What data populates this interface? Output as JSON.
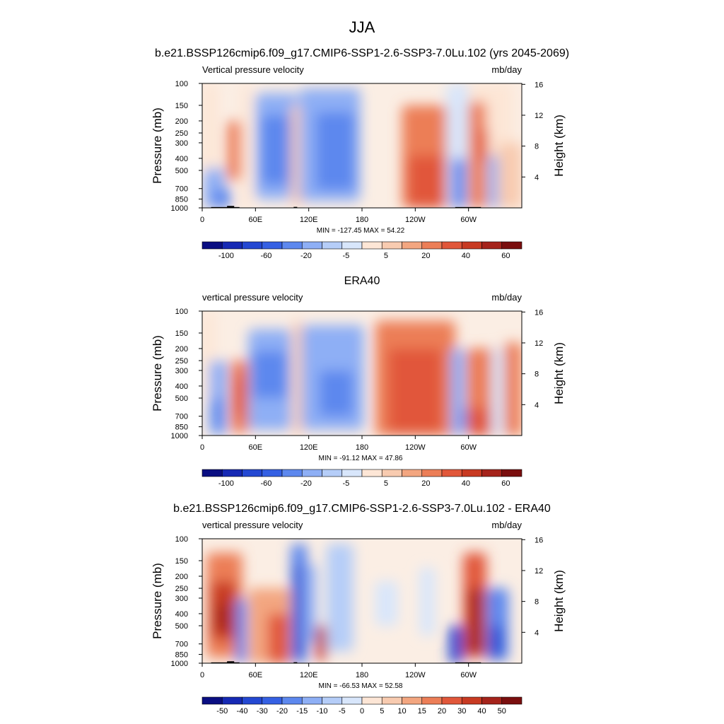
{
  "figure": {
    "title": "JJA"
  },
  "chart_data": [
    {
      "type": "heatmap",
      "title": "b.e21.BSSP126cmip6.f09_g17.CMIP6-SSP1-2.6-SSP3-7.0Lu.102 (yrs 2045-2069)",
      "left_label": "Vertical pressure velocity",
      "right_label": "mb/day",
      "ylabel": "Pressure (mb)",
      "ylabel_right": "Height (km)",
      "x_ticks": [
        "0",
        "60E",
        "120E",
        "180",
        "120W",
        "60W"
      ],
      "y_ticks": [
        "100",
        "150",
        "200",
        "250",
        "300",
        "400",
        "500",
        "700",
        "850",
        "1000"
      ],
      "y_right_ticks": [
        "16",
        "12",
        "8",
        "4"
      ],
      "stats": "MIN = -127.45  MAX =  54.22",
      "colorbar_labels": [
        "-100",
        "-60",
        "-20",
        "-5",
        "5",
        "20",
        "40",
        "60"
      ],
      "colorbar_colors": [
        "#0a0e82",
        "#1629b4",
        "#2448d2",
        "#3560e3",
        "#5d88ee",
        "#8eaff5",
        "#b5cdf8",
        "#d8e6fb",
        "#fde6d6",
        "#f8cbb0",
        "#f3a680",
        "#ec7e57",
        "#e1573a",
        "#c83a22",
        "#a5231b",
        "#7a0e0e"
      ],
      "features": [
        {
          "x": [
            0,
            18
          ],
          "p": [
            100,
            500
          ],
          "value": 4
        },
        {
          "x": [
            2,
            25
          ],
          "p": [
            480,
            1000
          ],
          "value": -20
        },
        {
          "x": [
            12,
            32
          ],
          "p": [
            700,
            1000
          ],
          "value": -60
        },
        {
          "x": [
            28,
            44
          ],
          "p": [
            200,
            600
          ],
          "value": 20
        },
        {
          "x": [
            44,
            55
          ],
          "p": [
            100,
            1000
          ],
          "value": 0
        },
        {
          "x": [
            60,
            108
          ],
          "p": [
            120,
            850
          ],
          "value": -20
        },
        {
          "x": [
            66,
            104
          ],
          "p": [
            180,
            650
          ],
          "value": -60
        },
        {
          "x": [
            100,
            114
          ],
          "p": [
            150,
            950
          ],
          "value": 5
        },
        {
          "x": [
            110,
            178
          ],
          "p": [
            110,
            880
          ],
          "value": -20
        },
        {
          "x": [
            128,
            172
          ],
          "p": [
            170,
            720
          ],
          "value": -60
        },
        {
          "x": [
            225,
            290
          ],
          "p": [
            150,
            1000
          ],
          "value": 20
        },
        {
          "x": [
            232,
            282
          ],
          "p": [
            380,
            1000
          ],
          "value": 40
        },
        {
          "x": [
            290,
            350
          ],
          "p": [
            100,
            900
          ],
          "value": 3
        },
        {
          "x": [
            275,
            300
          ],
          "p": [
            100,
            1000
          ],
          "value": -5
        },
        {
          "x": [
            281,
            297
          ],
          "p": [
            400,
            1000
          ],
          "value": -60
        },
        {
          "x": [
            300,
            320
          ],
          "p": [
            140,
            1000
          ],
          "value": 20
        },
        {
          "x": [
            312,
            322
          ],
          "p": [
            230,
            420
          ],
          "value": 40
        },
        {
          "x": [
            322,
            340
          ],
          "p": [
            380,
            1000
          ],
          "value": -20
        },
        {
          "x": [
            333,
            360
          ],
          "p": [
            300,
            1000
          ],
          "value": 5
        }
      ]
    },
    {
      "type": "heatmap",
      "title": "ERA40",
      "left_label": "vertical pressure velocity",
      "right_label": "mb/day",
      "ylabel": "Pressure (mb)",
      "ylabel_right": "Height (km)",
      "x_ticks": [
        "0",
        "60E",
        "120E",
        "180",
        "120W",
        "60W"
      ],
      "y_ticks": [
        "100",
        "150",
        "200",
        "250",
        "300",
        "400",
        "500",
        "700",
        "850",
        "1000"
      ],
      "y_right_ticks": [
        "16",
        "12",
        "8",
        "4"
      ],
      "stats": "MIN = -91.12  MAX =  47.86",
      "colorbar_labels": [
        "-100",
        "-60",
        "-20",
        "-5",
        "5",
        "20",
        "40",
        "60"
      ],
      "colorbar_colors": [
        "#0a0e82",
        "#1629b4",
        "#2448d2",
        "#3560e3",
        "#5d88ee",
        "#8eaff5",
        "#b5cdf8",
        "#d8e6fb",
        "#fde6d6",
        "#f8cbb0",
        "#f3a680",
        "#ec7e57",
        "#e1573a",
        "#c83a22",
        "#a5231b",
        "#7a0e0e"
      ],
      "features": [
        {
          "x": [
            0,
            15
          ],
          "p": [
            100,
            500
          ],
          "value": 4
        },
        {
          "x": [
            8,
            28
          ],
          "p": [
            250,
            1000
          ],
          "value": -20
        },
        {
          "x": [
            10,
            24
          ],
          "p": [
            500,
            900
          ],
          "value": -60
        },
        {
          "x": [
            32,
            52
          ],
          "p": [
            250,
            950
          ],
          "value": 20
        },
        {
          "x": [
            36,
            48
          ],
          "p": [
            330,
            700
          ],
          "value": 40
        },
        {
          "x": [
            52,
            100
          ],
          "p": [
            140,
            900
          ],
          "value": -20
        },
        {
          "x": [
            56,
            96
          ],
          "p": [
            210,
            500
          ],
          "value": -60
        },
        {
          "x": [
            102,
            112
          ],
          "p": [
            120,
            1000
          ],
          "value": 5
        },
        {
          "x": [
            112,
            182
          ],
          "p": [
            130,
            900
          ],
          "value": -20
        },
        {
          "x": [
            132,
            170
          ],
          "p": [
            300,
            700
          ],
          "value": -60
        },
        {
          "x": [
            195,
            285
          ],
          "p": [
            120,
            1000
          ],
          "value": 20
        },
        {
          "x": [
            210,
            270
          ],
          "p": [
            200,
            950
          ],
          "value": 40
        },
        {
          "x": [
            280,
            296
          ],
          "p": [
            200,
            1000
          ],
          "value": -20
        },
        {
          "x": [
            292,
            300
          ],
          "p": [
            600,
            900
          ],
          "value": -60
        },
        {
          "x": [
            298,
            330
          ],
          "p": [
            200,
            1000
          ],
          "value": 20
        },
        {
          "x": [
            300,
            326
          ],
          "p": [
            600,
            1000
          ],
          "value": 40
        },
        {
          "x": [
            326,
            340
          ],
          "p": [
            200,
            1000
          ],
          "value": -5
        },
        {
          "x": [
            340,
            360
          ],
          "p": [
            180,
            1000
          ],
          "value": 20
        }
      ]
    },
    {
      "type": "heatmap",
      "title": "b.e21.BSSP126cmip6.f09_g17.CMIP6-SSP1-2.6-SSP3-7.0Lu.102 - ERA40",
      "left_label": "vertical pressure velocity",
      "right_label": "mb/day",
      "ylabel": "Pressure (mb)",
      "ylabel_right": "Height (km)",
      "x_ticks": [
        "0",
        "60E",
        "120E",
        "180",
        "120W",
        "60W"
      ],
      "y_ticks": [
        "100",
        "150",
        "200",
        "250",
        "300",
        "400",
        "500",
        "700",
        "850",
        "1000"
      ],
      "y_right_ticks": [
        "16",
        "12",
        "8",
        "4"
      ],
      "stats": "MIN = -66.53  MAX =  52.58",
      "colorbar_labels": [
        "-50",
        "-40",
        "-30",
        "-20",
        "-15",
        "-10",
        "-5",
        "0",
        "5",
        "10",
        "15",
        "20",
        "30",
        "40",
        "50"
      ],
      "colorbar_colors": [
        "#0a0e82",
        "#1629b4",
        "#2448d2",
        "#3560e3",
        "#5d88ee",
        "#8eaff5",
        "#b5cdf8",
        "#d8e6fb",
        "#fde6d6",
        "#f8cbb0",
        "#f3a680",
        "#ec7e57",
        "#e1573a",
        "#c83a22",
        "#a5231b",
        "#7a0e0e"
      ],
      "features": [
        {
          "x": [
            5,
            45
          ],
          "p": [
            130,
            900
          ],
          "value": 15
        },
        {
          "x": [
            10,
            38
          ],
          "p": [
            220,
            650
          ],
          "value": 30
        },
        {
          "x": [
            15,
            30
          ],
          "p": [
            330,
            550
          ],
          "value": 40
        },
        {
          "x": [
            38,
            50
          ],
          "p": [
            300,
            1000
          ],
          "value": -20
        },
        {
          "x": [
            52,
            100
          ],
          "p": [
            250,
            1000
          ],
          "value": 10
        },
        {
          "x": [
            74,
            98
          ],
          "p": [
            400,
            1000
          ],
          "value": 20
        },
        {
          "x": [
            100,
            118
          ],
          "p": [
            110,
            1000
          ],
          "value": -20
        },
        {
          "x": [
            104,
            114
          ],
          "p": [
            160,
            900
          ],
          "value": -40
        },
        {
          "x": [
            114,
            128
          ],
          "p": [
            160,
            700
          ],
          "value": -15
        },
        {
          "x": [
            128,
            140
          ],
          "p": [
            500,
            950
          ],
          "value": 30
        },
        {
          "x": [
            140,
            170
          ],
          "p": [
            110,
            800
          ],
          "value": -10
        },
        {
          "x": [
            195,
            220
          ],
          "p": [
            220,
            500
          ],
          "value": -5
        },
        {
          "x": [
            245,
            262
          ],
          "p": [
            170,
            600
          ],
          "value": -5
        },
        {
          "x": [
            278,
            294
          ],
          "p": [
            500,
            1000
          ],
          "value": -40
        },
        {
          "x": [
            294,
            320
          ],
          "p": [
            130,
            900
          ],
          "value": 20
        },
        {
          "x": [
            300,
            316
          ],
          "p": [
            250,
            850
          ],
          "value": 40
        },
        {
          "x": [
            320,
            345
          ],
          "p": [
            250,
            950
          ],
          "value": -20
        },
        {
          "x": [
            324,
            338
          ],
          "p": [
            500,
            900
          ],
          "value": -40
        }
      ]
    }
  ]
}
